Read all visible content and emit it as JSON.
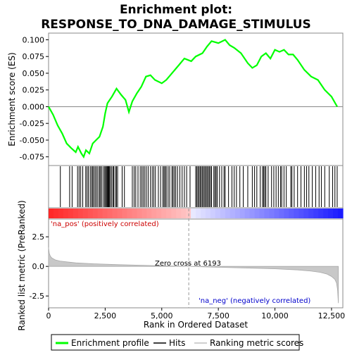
{
  "chart_data": {
    "type": "line",
    "title_line1": "Enrichment plot:",
    "title_line2": "RESPONSE_TO_DNA_DAMAGE_STIMULUS",
    "top_panel": {
      "ylabel": "Enrichment score (ES)",
      "ylim": [
        -0.088,
        0.11
      ],
      "yticks": [
        -0.075,
        -0.05,
        -0.025,
        0.0,
        0.025,
        0.05,
        0.075,
        0.1
      ],
      "ytick_labels": [
        "-0.075",
        "-0.050",
        "-0.025",
        "0.000",
        "0.025",
        "0.050",
        "0.075",
        "0.100"
      ],
      "series_name": "Enrichment profile",
      "color": "#00ff00",
      "x": [
        0,
        200,
        400,
        600,
        800,
        1000,
        1200,
        1300,
        1450,
        1550,
        1650,
        1800,
        1950,
        2100,
        2250,
        2400,
        2500,
        2600,
        2700,
        2800,
        3000,
        3200,
        3400,
        3550,
        3700,
        3900,
        4100,
        4300,
        4500,
        4700,
        5000,
        5200,
        5400,
        5700,
        6000,
        6300,
        6500,
        6800,
        7000,
        7200,
        7500,
        7800,
        8000,
        8200,
        8500,
        8800,
        9000,
        9200,
        9400,
        9600,
        9800,
        10000,
        10200,
        10400,
        10600,
        10800,
        11000,
        11300,
        11600,
        11900,
        12200,
        12500,
        12650,
        12750
      ],
      "y": [
        0.0,
        -0.012,
        -0.028,
        -0.04,
        -0.055,
        -0.062,
        -0.068,
        -0.06,
        -0.07,
        -0.075,
        -0.065,
        -0.07,
        -0.055,
        -0.05,
        -0.045,
        -0.03,
        -0.01,
        0.005,
        0.01,
        0.015,
        0.027,
        0.018,
        0.01,
        -0.008,
        0.008,
        0.02,
        0.03,
        0.045,
        0.047,
        0.04,
        0.035,
        0.04,
        0.048,
        0.06,
        0.072,
        0.068,
        0.075,
        0.08,
        0.09,
        0.098,
        0.095,
        0.1,
        0.092,
        0.088,
        0.08,
        0.065,
        0.058,
        0.062,
        0.075,
        0.08,
        0.072,
        0.085,
        0.082,
        0.085,
        0.078,
        0.078,
        0.07,
        0.055,
        0.045,
        0.04,
        0.025,
        0.015,
        0.006,
        0.0
      ]
    },
    "hits_panel": {
      "hit_positions": [
        520,
        930,
        1040,
        1280,
        1350,
        1420,
        1510,
        1640,
        1700,
        1760,
        1840,
        1900,
        1950,
        2000,
        2060,
        2120,
        2180,
        2250,
        2290,
        2350,
        2420,
        2480,
        2520,
        2560,
        2600,
        2630,
        2660,
        2700,
        2720,
        2780,
        2840,
        2880,
        2950,
        3000,
        3050,
        3250,
        3350,
        3700,
        3780,
        3850,
        3950,
        4050,
        4120,
        4180,
        4250,
        4320,
        4400,
        4500,
        4580,
        4650,
        4720,
        4850,
        4950,
        5050,
        5100,
        5150,
        5200,
        5280,
        5350,
        5450,
        5500,
        5560,
        5620,
        5700,
        5800,
        5900,
        6000,
        6100,
        6250,
        6500,
        6550,
        6600,
        6650,
        6700,
        6750,
        6800,
        6850,
        6900,
        6950,
        7000,
        7050,
        7100,
        7150,
        7200,
        7300,
        7350,
        7400,
        7450,
        7550,
        7650,
        7750,
        7800,
        7950,
        8100,
        8200,
        8300,
        8450,
        8600,
        8800,
        9000,
        9100,
        9200,
        9350,
        9450,
        9500,
        9550,
        9600,
        9700,
        9850,
        9950,
        10050,
        10150,
        10250,
        10300,
        10400,
        10500,
        10700,
        10750,
        10850,
        11000,
        11150,
        11300,
        11400,
        11500,
        11650,
        11800,
        11950,
        12050,
        12200,
        12400,
        12550,
        12650,
        12750
      ]
    },
    "ranked_panel": {
      "ylabel": "Ranked list metric (PreRanked)",
      "xlabel": "Rank in Ordered Dataset",
      "ylim": [
        -3.5,
        4.0
      ],
      "yticks": [
        -2.5,
        0.0,
        2.5
      ],
      "ytick_labels": [
        "-2.5",
        "0.0",
        "2.5"
      ],
      "xlim": [
        0,
        13000
      ],
      "xticks": [
        0,
        2500,
        5000,
        7500,
        10000,
        12500
      ],
      "xtick_labels": [
        "0",
        "2,500",
        "5,000",
        "7,500",
        "10,000",
        "12,500"
      ],
      "x": [
        0,
        30,
        80,
        150,
        300,
        500,
        800,
        1200,
        2000,
        3000,
        4000,
        5000,
        6193,
        7000,
        8000,
        9000,
        10000,
        11000,
        11600,
        12000,
        12300,
        12500,
        12650,
        12720,
        12770,
        12800
      ],
      "y": [
        1.6,
        1.1,
        0.85,
        0.7,
        0.55,
        0.45,
        0.38,
        0.3,
        0.22,
        0.15,
        0.1,
        0.05,
        0.0,
        -0.05,
        -0.1,
        -0.15,
        -0.2,
        -0.3,
        -0.4,
        -0.5,
        -0.65,
        -0.85,
        -1.1,
        -1.4,
        -2.0,
        -3.1
      ],
      "zero_cross_label": "Zero cross at 6193",
      "zero_cross_rank": 6193,
      "pos_label": "'na_pos' (positively correlated)",
      "neg_label": "'na_neg' (negatively correlated)",
      "fill_color": "#c8c8c8"
    },
    "legend": {
      "items": [
        "Enrichment profile",
        "Hits",
        "Ranking metric scores"
      ],
      "placement": "bottom"
    }
  }
}
